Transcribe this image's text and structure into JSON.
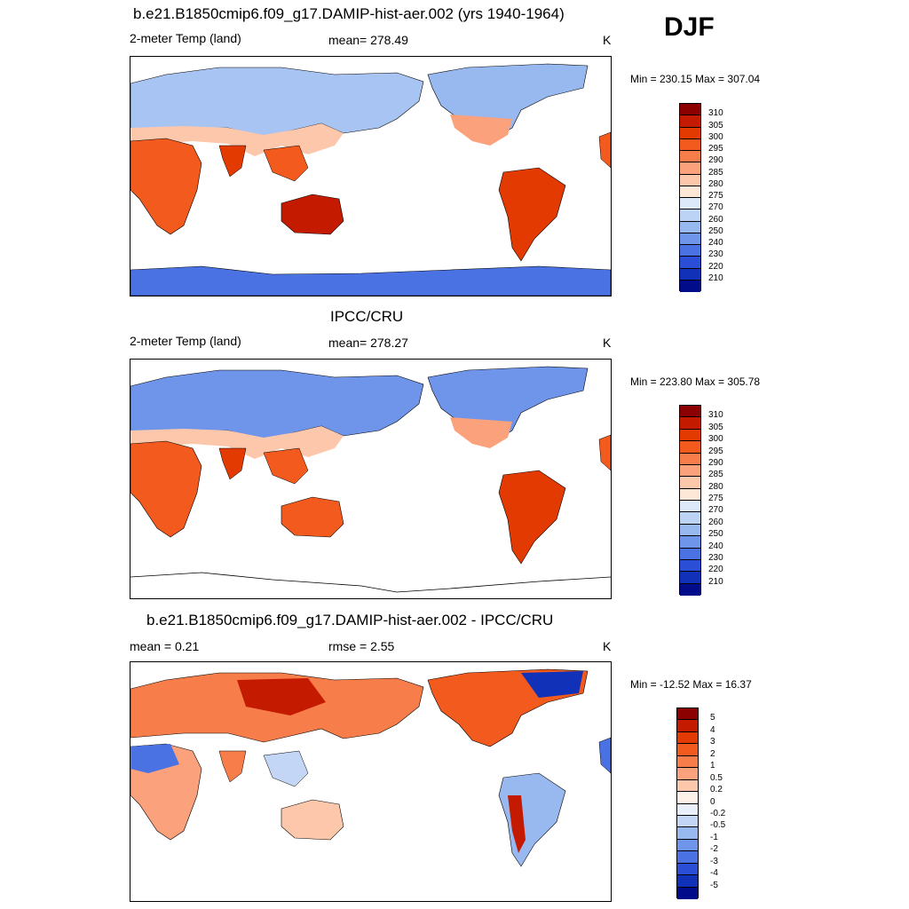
{
  "season": "DJF",
  "panels": [
    {
      "title": "b.e21.B1850cmip6.f09_g17.DAMIP-hist-aer.002 (yrs 1940-1964)",
      "left": "2-meter Temp (land)",
      "center": "mean= 278.49",
      "units": "K",
      "minmax": "Min = 230.15 Max = 307.04",
      "kind": "abs"
    },
    {
      "title": "IPCC/CRU",
      "left": "2-meter Temp (land)",
      "center": "mean= 278.27",
      "units": "K",
      "minmax": "Min = 223.80 Max = 305.78",
      "kind": "abs"
    },
    {
      "title": "b.e21.B1850cmip6.f09_g17.DAMIP-hist-aer.002 - IPCC/CRU",
      "left": "mean =   0.21",
      "center": "rmse =   2.55",
      "units": "K",
      "minmax": "Min = -12.52 Max =  16.37",
      "kind": "diff"
    }
  ],
  "colorbar_abs": {
    "labels": [
      "310",
      "305",
      "300",
      "295",
      "290",
      "285",
      "280",
      "275",
      "270",
      "260",
      "250",
      "240",
      "230",
      "220",
      "210"
    ],
    "colors": [
      "#8b0000",
      "#c41a00",
      "#e23a00",
      "#f25a1e",
      "#f77e4a",
      "#fba27c",
      "#fdc7ab",
      "#fde8d8",
      "#dde9f8",
      "#bcd3f5",
      "#98b8f0",
      "#6f95ea",
      "#4a72e3",
      "#2a4fd6",
      "#1132b8",
      "#000c8a"
    ]
  },
  "colorbar_diff": {
    "labels": [
      "5",
      "4",
      "3",
      "2",
      "1",
      "0.5",
      "0.2",
      "0",
      "-0.2",
      "-0.5",
      "-1",
      "-2",
      "-3",
      "-4",
      "-5"
    ],
    "colors": [
      "#8b0000",
      "#c41a00",
      "#e23a00",
      "#f25a1e",
      "#f77e4a",
      "#fba27c",
      "#fdc7ab",
      "#fef1e8",
      "#eaf0fa",
      "#c4d6f5",
      "#98b8f0",
      "#6f95ea",
      "#4a72e3",
      "#2a4fd6",
      "#1132b8",
      "#000c8a"
    ]
  }
}
